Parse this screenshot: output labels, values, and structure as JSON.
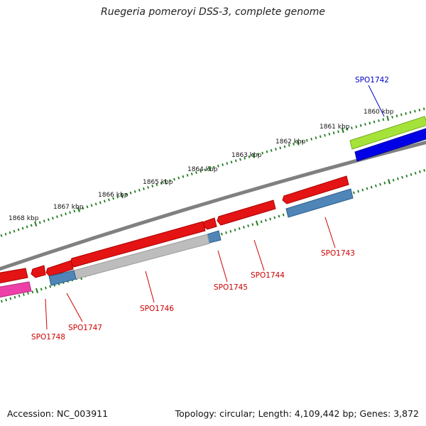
{
  "title": "Ruegeria pomeroyi DSS-3, complete genome",
  "footer": {
    "accession": "Accession: NC_003911",
    "summary": "Topology: circular; Length: 4,109,442 bp; Genes: 3,872"
  },
  "colors": {
    "backbone": "#808080",
    "tick": "#1e7a1e",
    "red_gene": "#e41414",
    "blue_gene": "#4f86b7",
    "grey_gene": "#bdbdbd",
    "lime_gene": "#a6e33a",
    "navy_gene": "#0000e6",
    "magenta_gene": "#ee3fa8",
    "label_red": "#cc0000",
    "label_blue": "#0000cc"
  },
  "kbp_labels": [
    "1860 kbp",
    "1861 kbp",
    "1862 kbp",
    "1863 kbp",
    "1864 kbp",
    "1865 kbp",
    "1866 kbp",
    "1867 kbp",
    "1868 kbp"
  ],
  "gene_labels": [
    "SPO1742",
    "SPO1743",
    "SPO1744",
    "SPO1745",
    "SPO1746",
    "SPO1747",
    "SPO1748"
  ]
}
